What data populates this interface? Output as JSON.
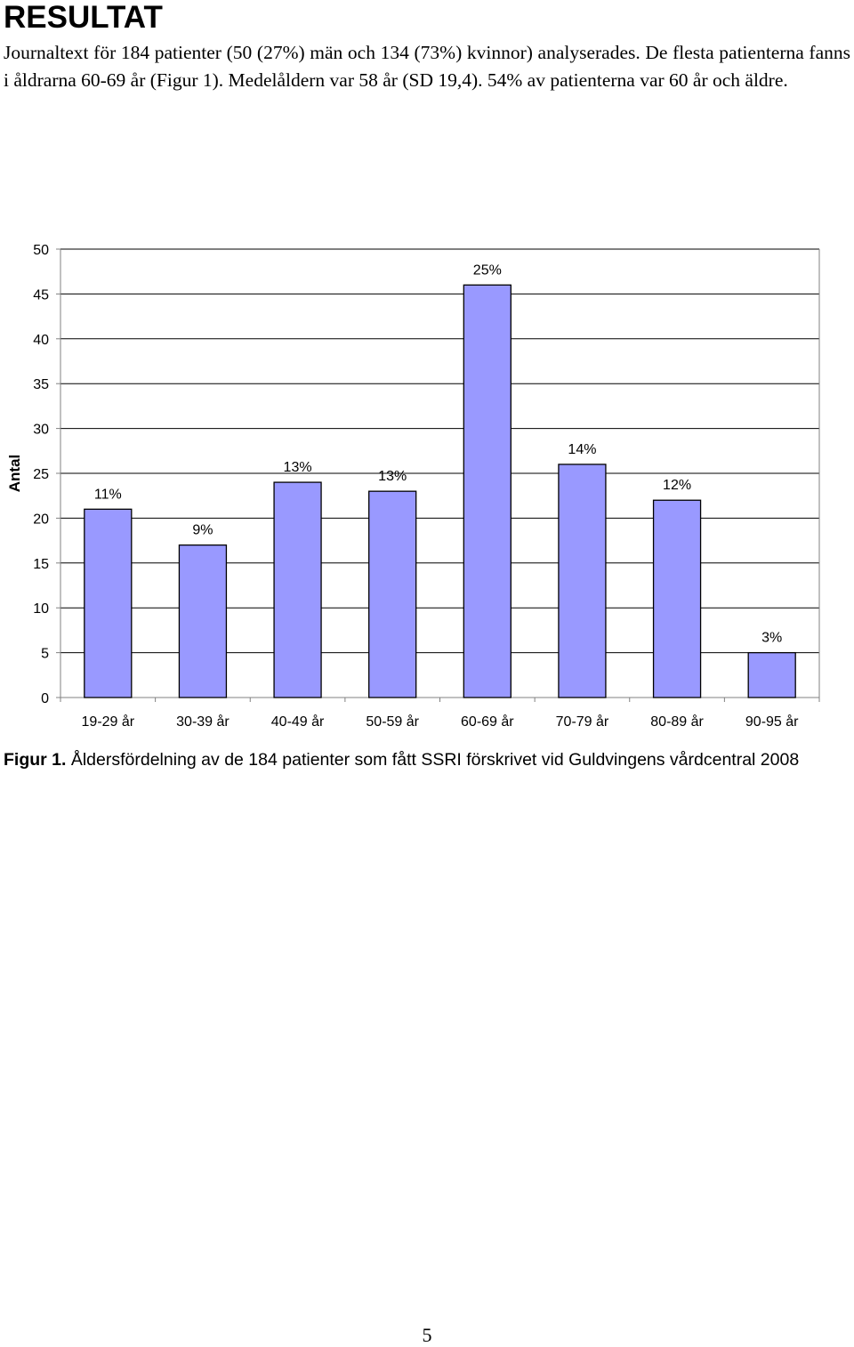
{
  "document": {
    "heading": "RESULTAT",
    "paragraph": "Journaltext för 184 patienter (50 (27%) män och 134 (73%) kvinnor) analyserades. De flesta patienterna fanns i åldrarna 60-69 år (Figur 1). Medelåldern var 58 år (SD 19,4). 54% av patienterna var 60 år och äldre.",
    "caption_label": "Figur 1.",
    "caption_text": " Åldersfördelning av de 184 patienter som fått SSRI förskrivet vid Guldvingens vårdcentral 2008",
    "page_number": "5"
  },
  "chart_data": {
    "type": "bar",
    "categories": [
      "19-29 år",
      "30-39 år",
      "40-49 år",
      "50-59 år",
      "60-69 år",
      "70-79 år",
      "80-89 år",
      "90-95 år"
    ],
    "values": [
      21,
      17,
      24,
      23,
      46,
      26,
      22,
      5
    ],
    "data_labels": [
      "11%",
      "9%",
      "13%",
      "13%",
      "25%",
      "14%",
      "12%",
      "3%"
    ],
    "ylabel": "Antal",
    "xlabel": "",
    "ylim": [
      0,
      50
    ],
    "yticks": [
      0,
      5,
      10,
      15,
      20,
      25,
      30,
      35,
      40,
      45,
      50
    ],
    "grid": true,
    "colors": {
      "bar": "#9999ff",
      "bar_stroke": "#000000",
      "grid": "#000000",
      "axis": "#808080"
    }
  }
}
